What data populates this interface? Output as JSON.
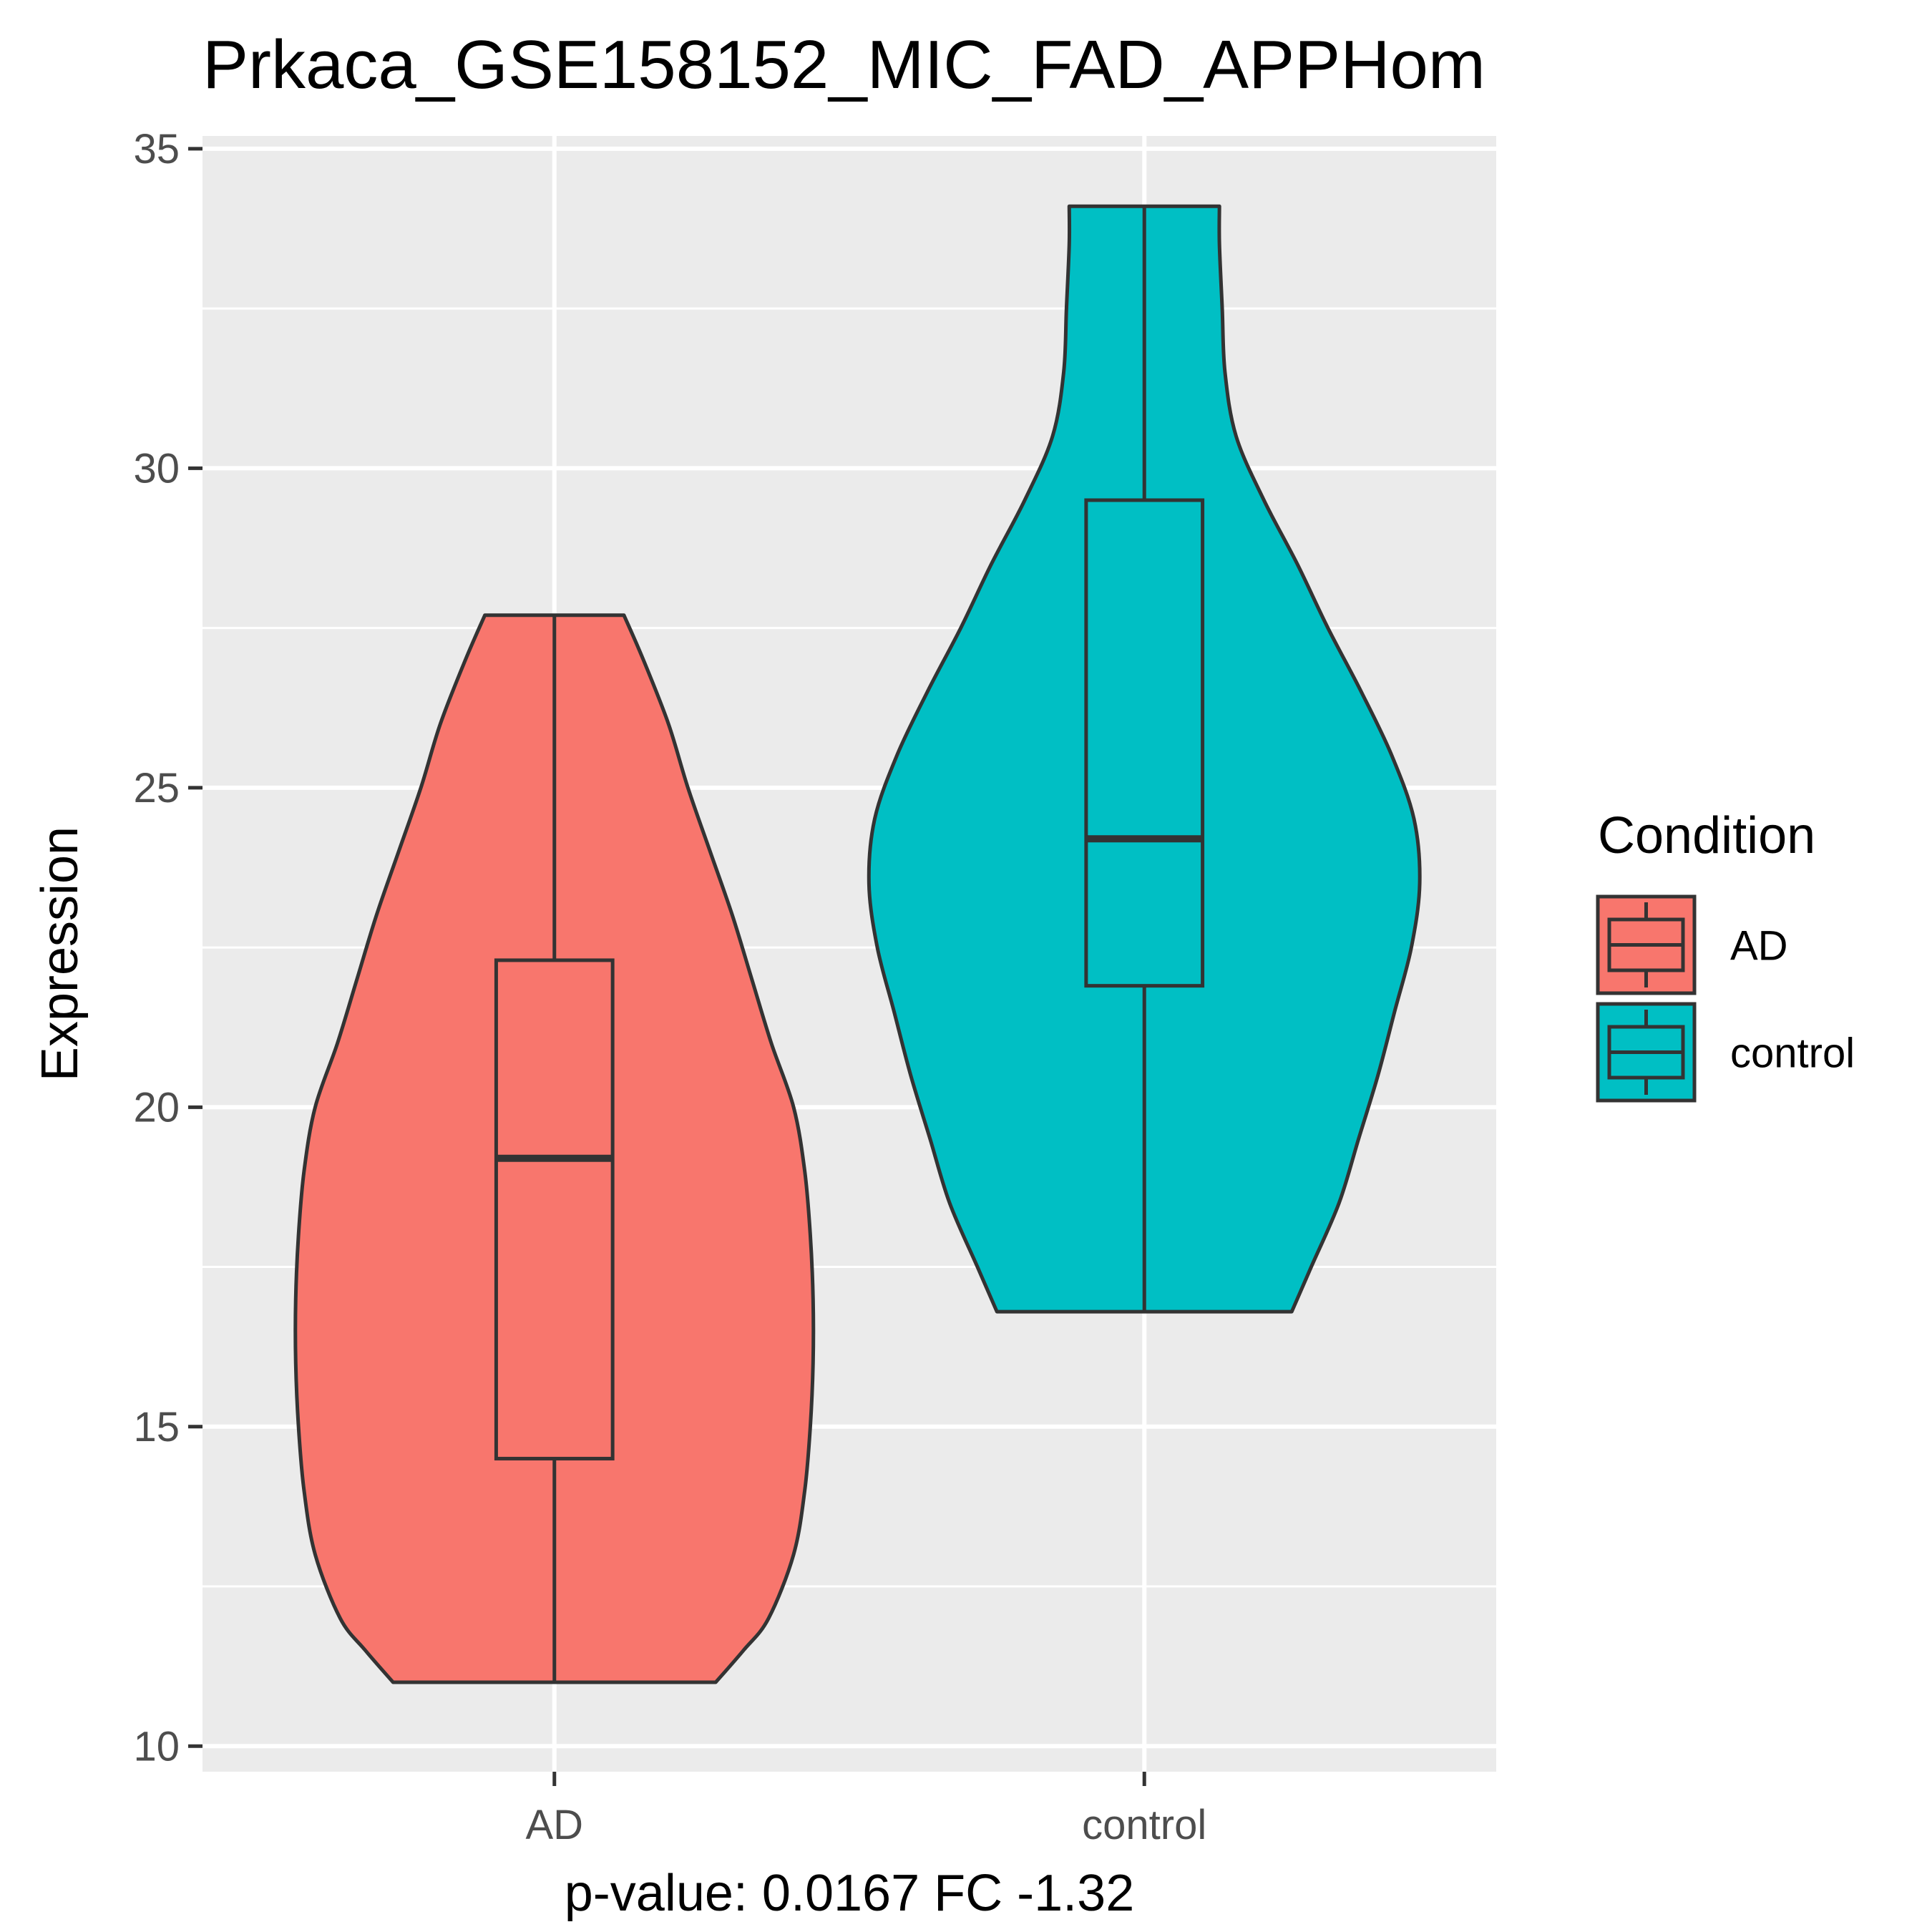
{
  "chart_data": {
    "type": "violin",
    "title": "Prkaca_GSE158152_MIC_FAD_APPHom",
    "xlabel": "p-value: 0.0167 FC -1.32",
    "ylabel": "Expression",
    "categories": [
      "AD",
      "control"
    ],
    "ylim": [
      9.6,
      35.2
    ],
    "yticks": [
      "10",
      "15",
      "20",
      "25",
      "30",
      "35"
    ],
    "grid": true,
    "legend": {
      "title": "Condition",
      "position": "right",
      "entries": [
        "AD",
        "control"
      ]
    },
    "series": [
      {
        "category": "AD",
        "color": "#F8766D",
        "min": 11.0,
        "q1": 14.5,
        "median": 19.2,
        "q3": 22.3,
        "max": 27.7,
        "density": [
          [
            11.0,
            0.58
          ],
          [
            11.5,
            0.68
          ],
          [
            12.0,
            0.77
          ],
          [
            13.0,
            0.86
          ],
          [
            14.0,
            0.9
          ],
          [
            15.0,
            0.92
          ],
          [
            16.0,
            0.93
          ],
          [
            17.0,
            0.93
          ],
          [
            18.0,
            0.92
          ],
          [
            19.0,
            0.9
          ],
          [
            20.0,
            0.86
          ],
          [
            21.0,
            0.78
          ],
          [
            22.0,
            0.71
          ],
          [
            23.0,
            0.64
          ],
          [
            24.0,
            0.56
          ],
          [
            25.0,
            0.48
          ],
          [
            26.0,
            0.41
          ],
          [
            27.0,
            0.32
          ],
          [
            27.7,
            0.25
          ]
        ]
      },
      {
        "category": "control",
        "color": "#00BFC4",
        "min": 16.8,
        "q1": 21.9,
        "median": 24.2,
        "q3": 29.5,
        "max": 34.1,
        "density": [
          [
            16.8,
            0.53
          ],
          [
            17.5,
            0.6
          ],
          [
            18.5,
            0.7
          ],
          [
            19.5,
            0.77
          ],
          [
            20.5,
            0.84
          ],
          [
            21.5,
            0.9
          ],
          [
            22.5,
            0.96
          ],
          [
            23.5,
            0.99
          ],
          [
            24.5,
            0.97
          ],
          [
            25.5,
            0.89
          ],
          [
            26.5,
            0.78
          ],
          [
            27.5,
            0.66
          ],
          [
            28.5,
            0.55
          ],
          [
            29.5,
            0.43
          ],
          [
            30.5,
            0.33
          ],
          [
            31.5,
            0.29
          ],
          [
            32.5,
            0.28
          ],
          [
            33.5,
            0.27
          ],
          [
            34.1,
            0.27
          ]
        ]
      }
    ]
  }
}
